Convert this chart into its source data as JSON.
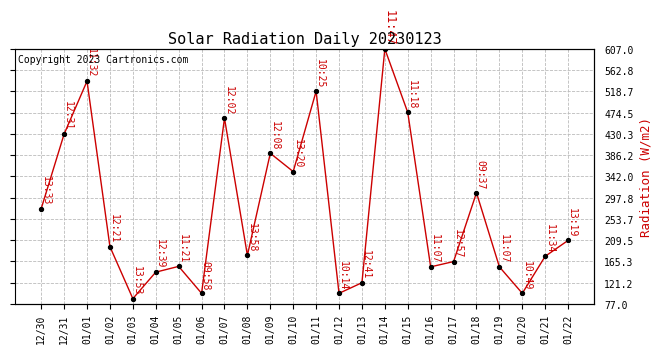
{
  "title": "Solar Radiation Daily 20230123",
  "copyright": "Copyright 2023 Cartronics.com",
  "ylabel_right": "Radiation (W/m2)",
  "dates": [
    "12/30",
    "12/31",
    "01/01",
    "01/02",
    "01/03",
    "01/04",
    "01/05",
    "01/06",
    "01/07",
    "01/08",
    "01/09",
    "01/10",
    "01/11",
    "01/12",
    "01/13",
    "01/14",
    "01/15",
    "01/16",
    "01/17",
    "01/18",
    "01/19",
    "01/20",
    "01/21",
    "01/22"
  ],
  "values": [
    275,
    430,
    540,
    196,
    88,
    143,
    155,
    99,
    463,
    178,
    390,
    352,
    519,
    99,
    121,
    607,
    475,
    154,
    165,
    308,
    154,
    99,
    176,
    209
  ],
  "labels": [
    "13:33",
    "12:31",
    "11:32",
    "12:21",
    "13:53",
    "12:39",
    "11:21",
    "09:58",
    "12:02",
    "13:58",
    "12:08",
    "13:20",
    "10:25",
    "10:14",
    "12:41",
    "11:47",
    "11:18",
    "11:07",
    "12:57",
    "09:37",
    "11:07",
    "10:49",
    "11:34",
    "13:19"
  ],
  "peak_index": 15,
  "ylim_min": 77.0,
  "ylim_max": 607.0,
  "yticks": [
    77.0,
    121.2,
    165.3,
    209.5,
    253.7,
    297.8,
    342.0,
    386.2,
    430.3,
    474.5,
    518.7,
    562.8,
    607.0
  ],
  "line_color": "#cc0000",
  "marker_color": "black",
  "label_color": "#cc0000",
  "title_color": "black",
  "copyright_color": "black",
  "ylabel_color": "#cc0000",
  "grid_color": "#bbbbbb",
  "background_color": "white",
  "title_fontsize": 11,
  "copyright_fontsize": 7,
  "label_fontsize": 7,
  "tick_fontsize": 7,
  "ylabel_fontsize": 9
}
